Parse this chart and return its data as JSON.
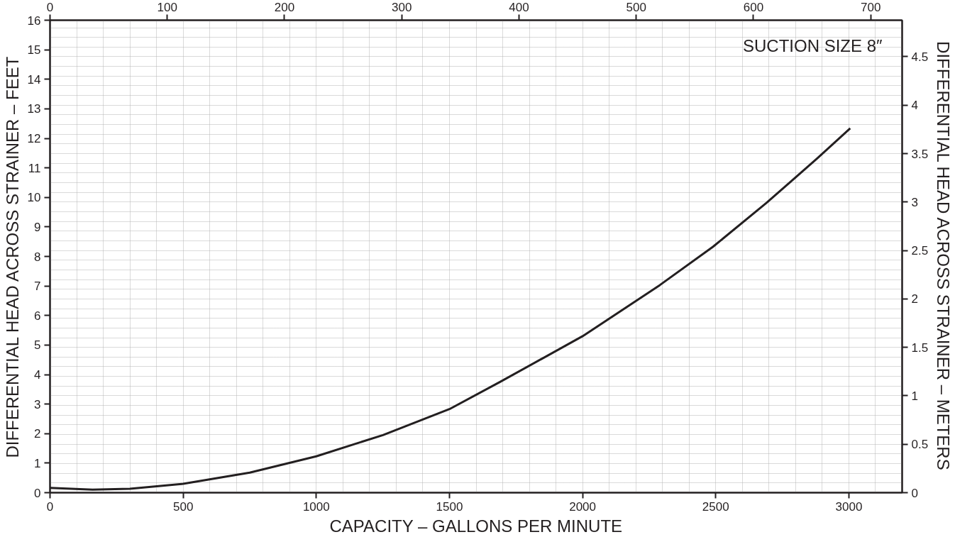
{
  "chart_data": {
    "type": "line",
    "xlabel": "CAPACITY – GALLONS PER MINUTE",
    "ylabel": "DIFFERENTIAL HEAD ACROSS STRAINER – FEET",
    "y2label": "DIFFERENTIAL HEAD ACROSS STRAINER – METERS",
    "annotations": [
      "SUCTION SIZE 8″"
    ],
    "x": [
      0,
      160,
      300,
      500,
      750,
      1000,
      1250,
      1500,
      1690,
      2000,
      2290,
      2490,
      2690,
      2880,
      3005
    ],
    "series": [
      {
        "color": "#231f20",
        "values": [
          0.16,
          0.1,
          0.13,
          0.3,
          0.68,
          1.23,
          1.95,
          2.83,
          3.75,
          5.3,
          7.03,
          8.33,
          9.81,
          11.31,
          12.34
        ]
      }
    ],
    "xlim": [
      0,
      3200
    ],
    "xticks": [
      0,
      500,
      1000,
      1500,
      2000,
      2500,
      3000
    ],
    "x2lim": [
      0,
      726.8
    ],
    "x2ticks": [
      0,
      100,
      200,
      300,
      400,
      500,
      600,
      700
    ],
    "ylim": [
      0,
      16
    ],
    "yticks": [
      0,
      1,
      2,
      3,
      4,
      5,
      6,
      7,
      8,
      9,
      10,
      11,
      12,
      13,
      14,
      15,
      16
    ],
    "y2lim": [
      0,
      4.877
    ],
    "y2ticks": [
      0,
      0.5,
      1,
      1.5,
      2,
      2.5,
      3,
      3.5,
      4,
      4.5
    ],
    "grid": true,
    "marker": "none",
    "line_style": "solid"
  }
}
